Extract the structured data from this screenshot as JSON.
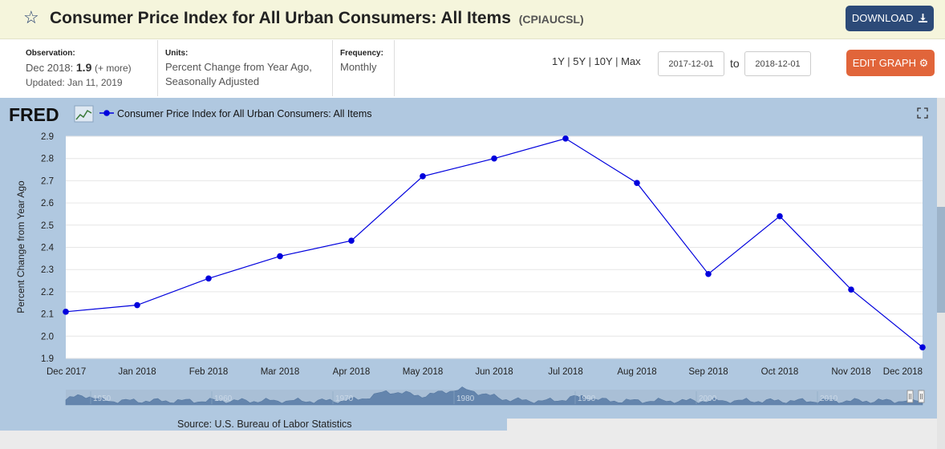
{
  "header": {
    "title": "Consumer Price Index for All Urban Consumers: All Items",
    "series_code": "(CPIAUCSL)",
    "download_label": "DOWNLOAD",
    "star_icon": "star-icon",
    "download_icon": "download-icon"
  },
  "meta": {
    "observation_label": "Observation:",
    "observation_date": "Dec 2018:",
    "observation_value": "1.9",
    "observation_more": "(+ more)",
    "updated": "Updated: Jan 11, 2019",
    "units_label": "Units:",
    "units_line1": "Percent Change from Year Ago,",
    "units_line2": "Seasonally Adjusted",
    "frequency_label": "Frequency:",
    "frequency_value": "Monthly"
  },
  "controls": {
    "range_1y": "1Y",
    "range_5y": "5Y",
    "range_10y": "10Y",
    "range_max": "Max",
    "date_from": "2017-12-01",
    "date_to": "2018-12-01",
    "to_label": "to",
    "edit_label": "EDIT GRAPH",
    "gear_icon": "gear-icon"
  },
  "graph": {
    "logo": "FRED",
    "source": "Source: U.S. Bureau of Labor Statistics",
    "expand_icon": "expand-icon"
  },
  "colors": {
    "series": "#0000dd",
    "header_bg": "#f5f5dc",
    "graph_bg": "#b0c8e0",
    "download_btn": "#2c4a78",
    "edit_btn": "#e1653a"
  },
  "chart_data": {
    "type": "line",
    "title": "",
    "xlabel": "",
    "ylabel": "Percent Change from Year Ago",
    "ylim": [
      1.9,
      2.9
    ],
    "yticks": [
      "1.9",
      "2.0",
      "2.1",
      "2.2",
      "2.3",
      "2.4",
      "2.5",
      "2.6",
      "2.7",
      "2.8",
      "2.9"
    ],
    "categories": [
      "Dec 2017",
      "Jan 2018",
      "Feb 2018",
      "Mar 2018",
      "Apr 2018",
      "May 2018",
      "Jun 2018",
      "Jul 2018",
      "Aug 2018",
      "Sep 2018",
      "Oct 2018",
      "Nov 2018",
      "Dec 2018"
    ],
    "series": [
      {
        "name": "Consumer Price Index for All Urban Consumers: All Items",
        "values": [
          2.11,
          2.14,
          2.26,
          2.36,
          2.43,
          2.72,
          2.8,
          2.89,
          2.69,
          2.28,
          2.54,
          2.21,
          1.95
        ]
      }
    ],
    "grid": true,
    "legend": "top-left",
    "navigator_labels": [
      "1950",
      "1960",
      "1970",
      "1980",
      "1990",
      "2000",
      "2010"
    ]
  }
}
